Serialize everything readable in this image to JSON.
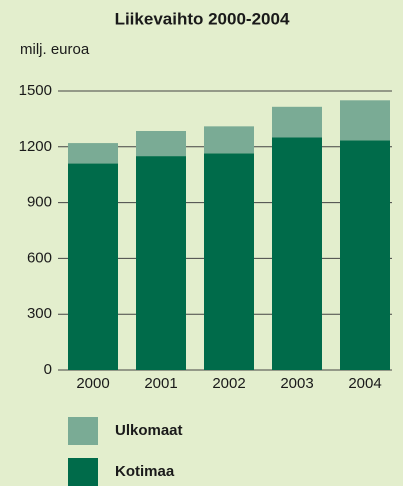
{
  "chart_data": {
    "type": "stacked_bar",
    "title": "Liikevaihto 2000-2004",
    "y_label": "milj. euroa",
    "categories": [
      "2000",
      "2001",
      "2002",
      "2003",
      "2004"
    ],
    "series": [
      {
        "name": "Kotimaa",
        "color": "#006b4a",
        "values": [
          1110,
          1150,
          1165,
          1250,
          1235
        ]
      },
      {
        "name": "Ulkomaat",
        "color": "#7aab95",
        "values": [
          110,
          135,
          145,
          165,
          215
        ]
      }
    ],
    "ylim": [
      0,
      1500
    ],
    "yticks": [
      0,
      300,
      600,
      900,
      1200,
      1500
    ],
    "grid": true
  }
}
